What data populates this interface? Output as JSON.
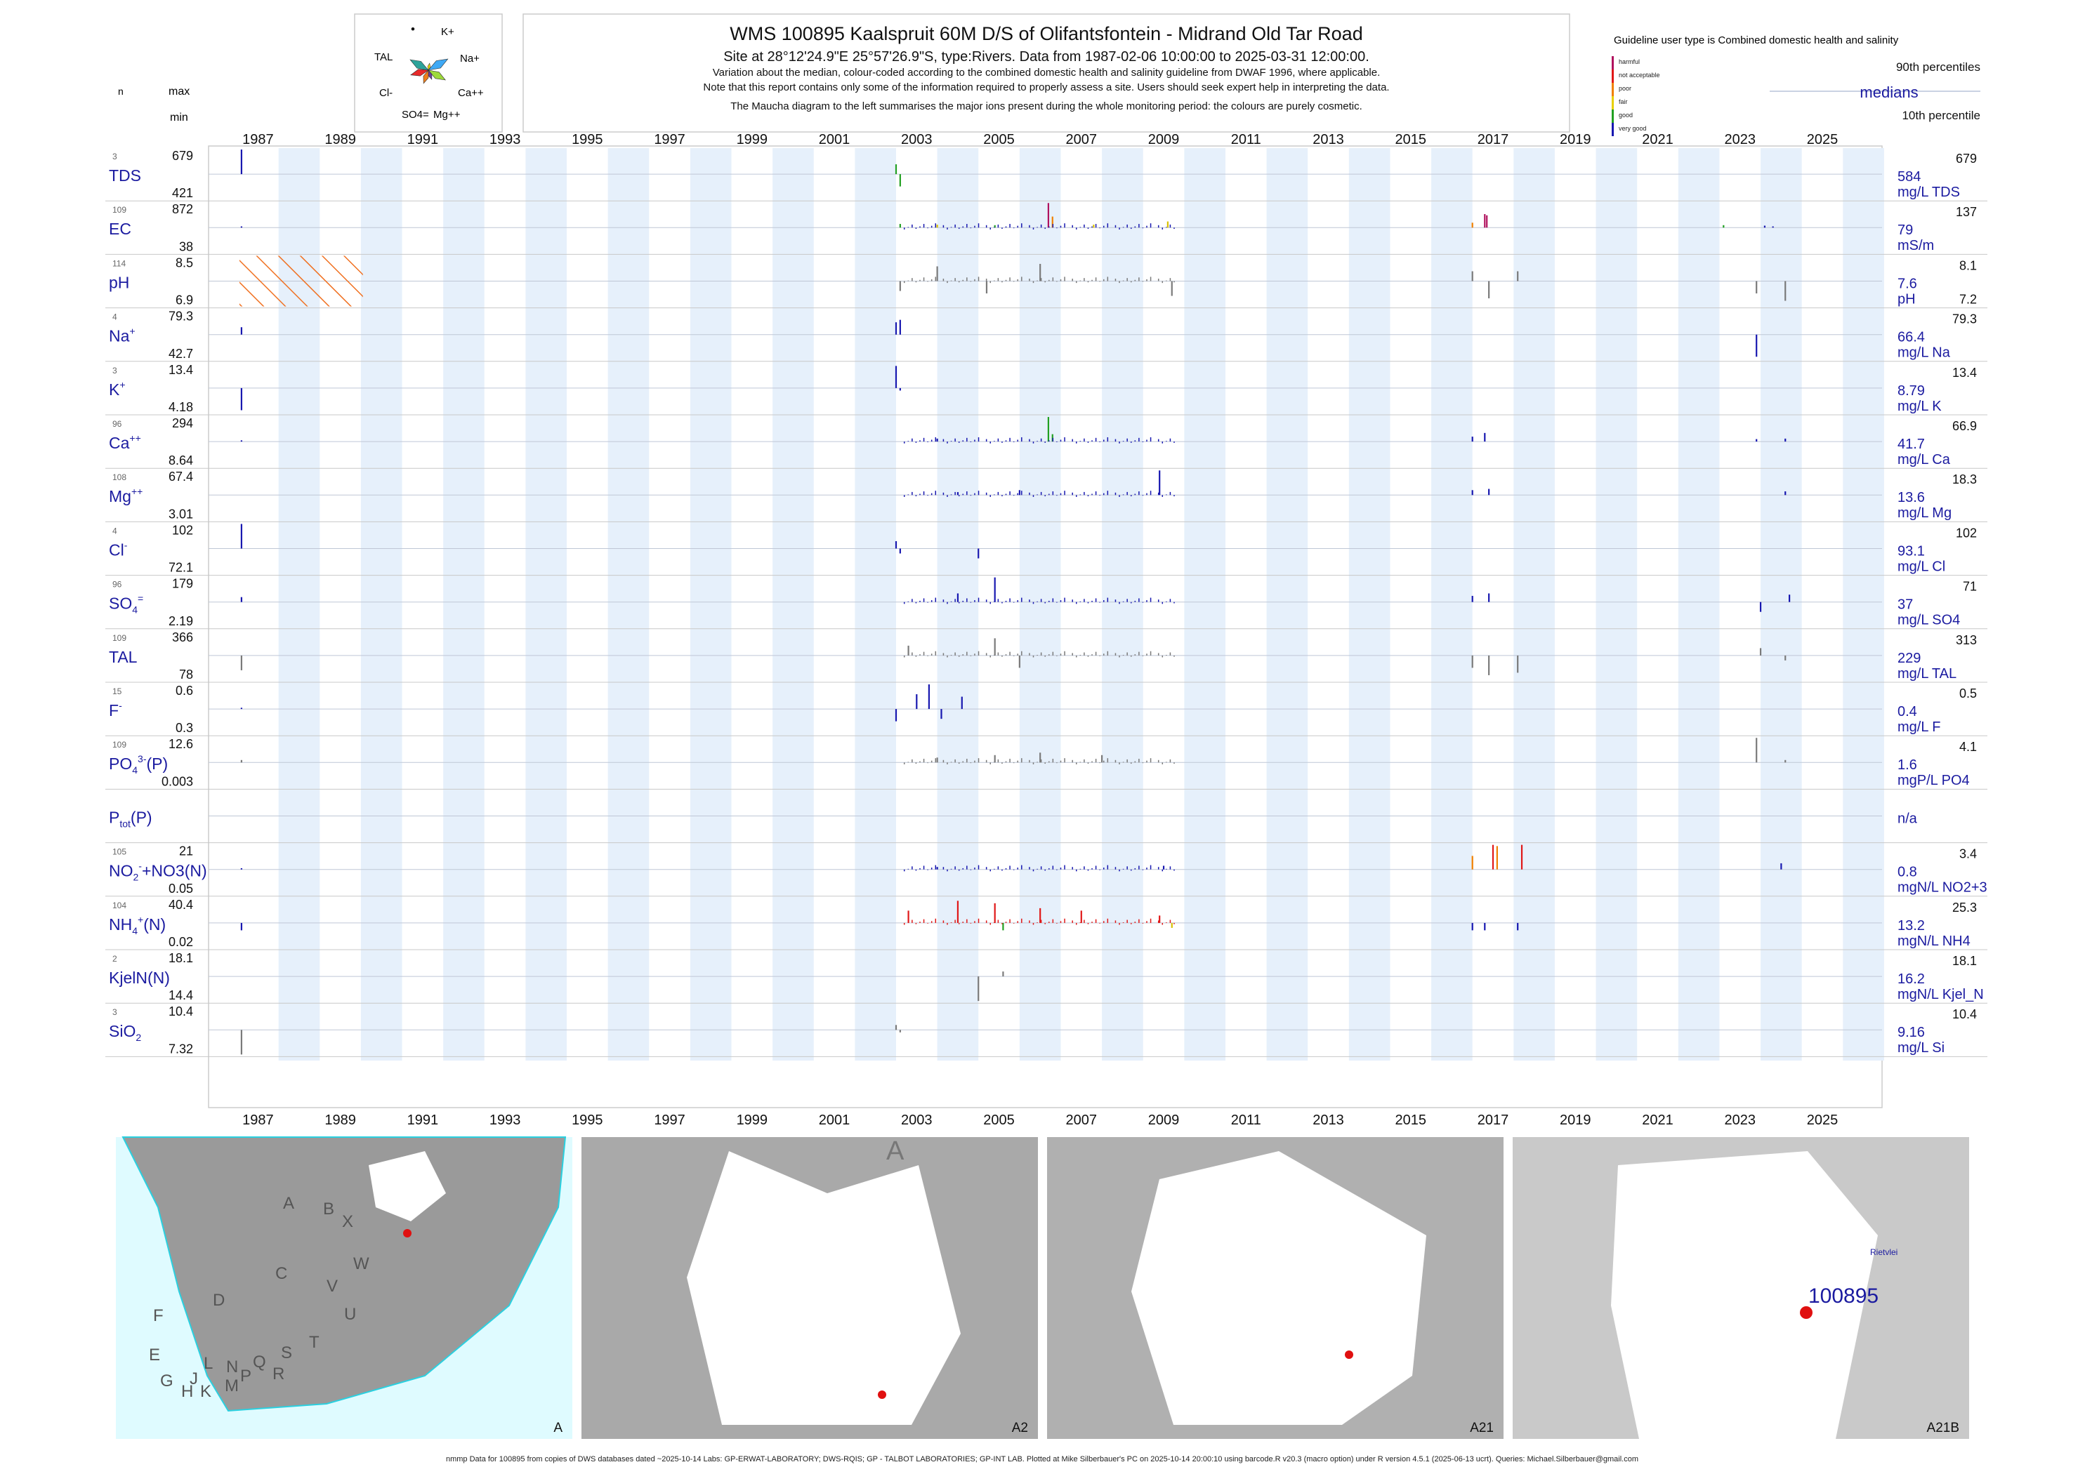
{
  "header": {
    "title": "WMS 100895  Kaalspruit 60M D/S of Olifantsfontein - Midrand Old Tar Road",
    "subtitle": "Site at 28°12'24.9\"E 25°57'26.9\"S, type:Rivers.  Data from 1987-02-06 10:00:00 to 2025-03-31 12:00:00.",
    "note1": "Variation about the median,  colour-coded according to the combined domestic health and salinity guideline from DWAF 1996, where applicable.",
    "note2": "Note that this report contains only some of the information required to properly assess a site. Users should seek expert help in interpreting the data.",
    "note3": "The Maucha diagram to the left summarises the major ions present during the whole monitoring period: the colours are purely cosmetic."
  },
  "maucha": {
    "labels": [
      "K+",
      "Na+",
      "Ca++",
      "Mg++",
      "SO4=",
      "Cl-",
      "TAL"
    ],
    "colors": [
      "#f2e400",
      "#3fa9f5",
      "#9dd93a",
      "#6b3fa0",
      "#f07f1a",
      "#e82a2a",
      "#2da39a"
    ]
  },
  "left_col_headers": {
    "n": "n",
    "max": "max",
    "min": "min"
  },
  "legend": {
    "guideline_text": "Guideline user type is Combined domestic health and salinity",
    "classes": [
      {
        "label": "harmful",
        "color": "#b0125e"
      },
      {
        "label": "not acceptable",
        "color": "#e01818"
      },
      {
        "label": "poor",
        "color": "#f08000"
      },
      {
        "label": "fair",
        "color": "#e8d000"
      },
      {
        "label": "good",
        "color": "#22a022"
      },
      {
        "label": "very good",
        "color": "#1818b0"
      }
    ],
    "p90": "90th percentiles",
    "medians": "medians",
    "p10": "10th percentile"
  },
  "years": [
    "1987",
    "1989",
    "1991",
    "1993",
    "1995",
    "1997",
    "1999",
    "2001",
    "2003",
    "2005",
    "2007",
    "2009",
    "2011",
    "2013",
    "2015",
    "2017",
    "2019",
    "2021",
    "2023",
    "2025"
  ],
  "params": [
    {
      "label": "TDS",
      "sup": "",
      "sub": "",
      "n": "3",
      "max": "679",
      "min": "421",
      "median": "584",
      "unit": "mg/L TDS",
      "p90": "679",
      "p10": ""
    },
    {
      "label": "EC",
      "sup": "",
      "sub": "",
      "n": "109",
      "max": "872",
      "min": "38",
      "median": "79",
      "unit": "mS/m",
      "p90": "137",
      "p10": ""
    },
    {
      "label": "pH",
      "sup": "",
      "sub": "",
      "n": "114",
      "max": "8.5",
      "min": "6.9",
      "median": "7.6",
      "unit": "pH",
      "p90": "8.1",
      "p10": "7.2"
    },
    {
      "label": "Na",
      "sup": "+",
      "sub": "",
      "n": "4",
      "max": "79.3",
      "min": "42.7",
      "median": "66.4",
      "unit": "mg/L Na",
      "p90": "79.3",
      "p10": ""
    },
    {
      "label": "K",
      "sup": "+",
      "sub": "",
      "n": "3",
      "max": "13.4",
      "min": "4.18",
      "median": "8.79",
      "unit": "mg/L K",
      "p90": "13.4",
      "p10": ""
    },
    {
      "label": "Ca",
      "sup": "++",
      "sub": "",
      "n": "96",
      "max": "294",
      "min": "8.64",
      "median": "41.7",
      "unit": "mg/L Ca",
      "p90": "66.9",
      "p10": ""
    },
    {
      "label": "Mg",
      "sup": "++",
      "sub": "",
      "n": "108",
      "max": "67.4",
      "min": "3.01",
      "median": "13.6",
      "unit": "mg/L Mg",
      "p90": "18.3",
      "p10": ""
    },
    {
      "label": "Cl",
      "sup": "-",
      "sub": "",
      "n": "4",
      "max": "102",
      "min": "72.1",
      "median": "93.1",
      "unit": "mg/L Cl",
      "p90": "102",
      "p10": ""
    },
    {
      "label": "SO",
      "sup": "=",
      "sub": "4",
      "n": "96",
      "max": "179",
      "min": "2.19",
      "median": "37",
      "unit": "mg/L SO4",
      "p90": "71",
      "p10": ""
    },
    {
      "label": "TAL",
      "sup": "",
      "sub": "",
      "n": "109",
      "max": "366",
      "min": "78",
      "median": "229",
      "unit": "mg/L TAL",
      "p90": "313",
      "p10": ""
    },
    {
      "label": "F",
      "sup": "-",
      "sub": "",
      "n": "15",
      "max": "0.6",
      "min": "0.3",
      "median": "0.4",
      "unit": "mg/L F",
      "p90": "0.5",
      "p10": ""
    },
    {
      "label": "PO",
      "sup": "3-",
      "sub": "4",
      "tail": "(P)",
      "n": "109",
      "max": "12.6",
      "min": "0.003",
      "median": "1.6",
      "unit": "mgP/L PO4",
      "p90": "4.1",
      "p10": ""
    },
    {
      "label": "P",
      "sup": "",
      "sub": "tot",
      "tail": "(P)",
      "n": "",
      "max": "",
      "min": "",
      "median": "n/a",
      "unit": "",
      "p90": "",
      "p10": ""
    },
    {
      "label": "NO",
      "sup": "-",
      "sub": "2",
      "tail": "+NO3(N)",
      "n": "105",
      "max": "21",
      "min": "0.05",
      "median": "0.8",
      "unit": "mgN/L NO2+3",
      "p90": "3.4",
      "p10": ""
    },
    {
      "label": "NH",
      "sup": "+",
      "sub": "4",
      "tail": "(N)",
      "n": "104",
      "max": "40.4",
      "min": "0.02",
      "median": "13.2",
      "unit": "mgN/L NH4",
      "p90": "25.3",
      "p10": ""
    },
    {
      "label": "KjelN(N)",
      "sup": "",
      "sub": "",
      "n": "2",
      "max": "18.1",
      "min": "14.4",
      "median": "16.2",
      "unit": "mgN/L Kjel_N",
      "p90": "18.1",
      "p10": ""
    },
    {
      "label": "SiO",
      "sup": "",
      "sub": "2",
      "n": "3",
      "max": "10.4",
      "min": "7.32",
      "median": "9.16",
      "unit": "mg/L Si",
      "p90": "10.4",
      "p10": ""
    }
  ],
  "maps": [
    {
      "caption": "A",
      "letters": [
        "A",
        "B",
        "X",
        "W",
        "C",
        "V",
        "U",
        "D",
        "T",
        "S",
        "F",
        "E",
        "Q",
        "R",
        "L",
        "N",
        "J",
        "G",
        "H",
        "K",
        "M",
        "P"
      ]
    },
    {
      "caption": "A2",
      "letters": [
        "A"
      ]
    },
    {
      "caption": "A21",
      "letters": []
    },
    {
      "caption": "A21B",
      "letters": [],
      "site_label": "100895",
      "place_label": "Rietvlei"
    }
  ],
  "footer": "nmmp Data for 100895 from copies of DWS databases dated ~2025-10-14 Labs: GP-ERWAT-LABORATORY; DWS-RQIS; GP - TALBOT LABORATORIES; GP-INT LAB. Plotted at Mike Silberbauer's PC on 2025-10-14 20:00:10 using barcode.R v20.3 (macro option) under R version 4.5.1 (2025-06-13 ucrt). Queries: Michael.Silberbauer@gmail.com",
  "chart_data": {
    "type": "bar",
    "title": "WMS 100895  Kaalspruit 60M D/S of Olifantsfontein - Midrand Old Tar Road",
    "x_range": [
      "1987-02-06",
      "2025-03-31"
    ],
    "grid": true,
    "legend_placement": "top-right",
    "series": [
      {
        "name": "TDS",
        "samples": [
          {
            "x": 1987.1,
            "v": 1.0,
            "c": "b"
          },
          {
            "x": 2003.0,
            "v": 0.4,
            "c": "g"
          },
          {
            "x": 2003.1,
            "v": -0.5,
            "c": "g"
          }
        ]
      },
      {
        "name": "EC",
        "samples": [
          {
            "x": 1987.1,
            "v": 0.05,
            "c": "b"
          },
          {
            "x": 2003.1,
            "v": 0.15,
            "c": "g"
          },
          {
            "x": 2004.0,
            "v": 0.12,
            "c": "y"
          },
          {
            "x": 2005.4,
            "v": 0.1,
            "c": "g"
          },
          {
            "x": 2006.7,
            "v": 1.0,
            "c": "h"
          },
          {
            "x": 2006.8,
            "v": 0.45,
            "c": "o"
          },
          {
            "x": 2007.8,
            "v": 0.12,
            "c": "y"
          },
          {
            "x": 2009.6,
            "v": 0.25,
            "c": "y"
          },
          {
            "x": 2017.0,
            "v": 0.2,
            "c": "o"
          },
          {
            "x": 2017.3,
            "v": 0.55,
            "c": "h"
          },
          {
            "x": 2017.35,
            "v": 0.5,
            "c": "h"
          },
          {
            "x": 2023.1,
            "v": 0.1,
            "c": "g"
          },
          {
            "x": 2024.1,
            "v": 0.08,
            "c": "b"
          },
          {
            "x": 2024.3,
            "v": 0.05,
            "c": "b"
          }
        ]
      },
      {
        "name": "pH",
        "samples": [
          {
            "x": 2003.1,
            "v": -0.4,
            "c": "x"
          },
          {
            "x": 2004.0,
            "v": 0.6,
            "c": "x"
          },
          {
            "x": 2005.2,
            "v": -0.5,
            "c": "x"
          },
          {
            "x": 2006.5,
            "v": 0.7,
            "c": "x"
          },
          {
            "x": 2009.7,
            "v": -0.6,
            "c": "x"
          },
          {
            "x": 2017.0,
            "v": 0.4,
            "c": "x"
          },
          {
            "x": 2017.4,
            "v": -0.7,
            "c": "x"
          },
          {
            "x": 2018.1,
            "v": 0.4,
            "c": "x"
          },
          {
            "x": 2023.9,
            "v": -0.5,
            "c": "x"
          },
          {
            "x": 2024.6,
            "v": -0.8,
            "c": "x"
          }
        ]
      },
      {
        "name": "Na",
        "samples": [
          {
            "x": 1987.1,
            "v": 0.3,
            "c": "b"
          },
          {
            "x": 2003.0,
            "v": 0.5,
            "c": "b"
          },
          {
            "x": 2003.1,
            "v": 0.6,
            "c": "b"
          },
          {
            "x": 2023.9,
            "v": -0.9,
            "c": "b"
          }
        ]
      },
      {
        "name": "K",
        "samples": [
          {
            "x": 1987.1,
            "v": -0.9,
            "c": "b"
          },
          {
            "x": 2003.0,
            "v": 0.9,
            "c": "b"
          },
          {
            "x": 2003.1,
            "v": -0.1,
            "c": "b"
          }
        ]
      },
      {
        "name": "Ca",
        "samples": [
          {
            "x": 1987.1,
            "v": 0.05,
            "c": "b"
          },
          {
            "x": 2004.0,
            "v": 0.12,
            "c": "b"
          },
          {
            "x": 2006.7,
            "v": 1.0,
            "c": "g"
          },
          {
            "x": 2006.8,
            "v": 0.3,
            "c": "g"
          },
          {
            "x": 2017.0,
            "v": 0.2,
            "c": "b"
          },
          {
            "x": 2017.3,
            "v": 0.35,
            "c": "b"
          },
          {
            "x": 2023.9,
            "v": 0.1,
            "c": "b"
          },
          {
            "x": 2024.6,
            "v": 0.12,
            "c": "b"
          }
        ]
      },
      {
        "name": "Mg",
        "samples": [
          {
            "x": 2004.5,
            "v": 0.12,
            "c": "b"
          },
          {
            "x": 2006.0,
            "v": 0.2,
            "c": "b"
          },
          {
            "x": 2009.4,
            "v": 1.0,
            "c": "b"
          },
          {
            "x": 2017.0,
            "v": 0.2,
            "c": "b"
          },
          {
            "x": 2017.4,
            "v": 0.25,
            "c": "b"
          },
          {
            "x": 2024.6,
            "v": 0.15,
            "c": "b"
          }
        ]
      },
      {
        "name": "Cl",
        "samples": [
          {
            "x": 1987.1,
            "v": 1.0,
            "c": "b"
          },
          {
            "x": 2003.0,
            "v": 0.3,
            "c": "b"
          },
          {
            "x": 2003.1,
            "v": -0.2,
            "c": "b"
          },
          {
            "x": 2005.0,
            "v": -0.4,
            "c": "b"
          }
        ]
      },
      {
        "name": "SO4",
        "samples": [
          {
            "x": 1987.1,
            "v": 0.2,
            "c": "b"
          },
          {
            "x": 2004.5,
            "v": 0.35,
            "c": "b"
          },
          {
            "x": 2005.4,
            "v": 1.0,
            "c": "b"
          },
          {
            "x": 2017.0,
            "v": 0.25,
            "c": "b"
          },
          {
            "x": 2017.4,
            "v": 0.35,
            "c": "b"
          },
          {
            "x": 2024.0,
            "v": -0.4,
            "c": "b"
          },
          {
            "x": 2024.7,
            "v": 0.3,
            "c": "b"
          }
        ]
      },
      {
        "name": "TAL",
        "samples": [
          {
            "x": 1987.1,
            "v": -0.6,
            "c": "x"
          },
          {
            "x": 2003.3,
            "v": 0.4,
            "c": "x"
          },
          {
            "x": 2005.4,
            "v": 0.7,
            "c": "x"
          },
          {
            "x": 2006.0,
            "v": -0.5,
            "c": "x"
          },
          {
            "x": 2017.0,
            "v": -0.5,
            "c": "x"
          },
          {
            "x": 2017.4,
            "v": -0.8,
            "c": "x"
          },
          {
            "x": 2018.1,
            "v": -0.7,
            "c": "x"
          },
          {
            "x": 2024.0,
            "v": 0.3,
            "c": "x"
          },
          {
            "x": 2024.6,
            "v": -0.2,
            "c": "x"
          }
        ]
      },
      {
        "name": "F",
        "samples": [
          {
            "x": 1987.1,
            "v": 0.05,
            "c": "b"
          },
          {
            "x": 2003.0,
            "v": -0.5,
            "c": "b"
          },
          {
            "x": 2003.5,
            "v": 0.6,
            "c": "b"
          },
          {
            "x": 2003.8,
            "v": 1.0,
            "c": "b"
          },
          {
            "x": 2004.1,
            "v": -0.4,
            "c": "b"
          },
          {
            "x": 2004.6,
            "v": 0.5,
            "c": "b"
          }
        ]
      },
      {
        "name": "PO4",
        "samples": [
          {
            "x": 1987.1,
            "v": 0.1,
            "c": "x"
          },
          {
            "x": 2004.0,
            "v": 0.2,
            "c": "x"
          },
          {
            "x": 2005.4,
            "v": 0.3,
            "c": "x"
          },
          {
            "x": 2006.5,
            "v": 0.4,
            "c": "x"
          },
          {
            "x": 2008.0,
            "v": 0.3,
            "c": "x"
          },
          {
            "x": 2023.9,
            "v": 1.0,
            "c": "x"
          },
          {
            "x": 2024.6,
            "v": 0.1,
            "c": "x"
          }
        ]
      },
      {
        "name": "Ptot",
        "samples": []
      },
      {
        "name": "NO2+NO3",
        "samples": [
          {
            "x": 1987.1,
            "v": 0.05,
            "c": "b"
          },
          {
            "x": 2004.0,
            "v": 0.1,
            "c": "b"
          },
          {
            "x": 2009.5,
            "v": 0.15,
            "c": "b"
          },
          {
            "x": 2017.0,
            "v": 0.55,
            "c": "o"
          },
          {
            "x": 2017.5,
            "v": 1.0,
            "c": "n"
          },
          {
            "x": 2017.6,
            "v": 0.95,
            "c": "o"
          },
          {
            "x": 2018.2,
            "v": 1.0,
            "c": "n"
          },
          {
            "x": 2024.5,
            "v": 0.25,
            "c": "b"
          }
        ]
      },
      {
        "name": "NH4",
        "samples": [
          {
            "x": 1987.1,
            "v": -0.3,
            "c": "b"
          },
          {
            "x": 2003.3,
            "v": 0.5,
            "c": "n"
          },
          {
            "x": 2004.5,
            "v": 0.9,
            "c": "n"
          },
          {
            "x": 2005.4,
            "v": 0.8,
            "c": "n"
          },
          {
            "x": 2005.6,
            "v": -0.3,
            "c": "g"
          },
          {
            "x": 2006.5,
            "v": 0.6,
            "c": "n"
          },
          {
            "x": 2007.5,
            "v": 0.5,
            "c": "n"
          },
          {
            "x": 2009.4,
            "v": 0.3,
            "c": "n"
          },
          {
            "x": 2009.7,
            "v": -0.2,
            "c": "y"
          },
          {
            "x": 2017.0,
            "v": -0.3,
            "c": "b"
          },
          {
            "x": 2017.3,
            "v": -0.3,
            "c": "b"
          },
          {
            "x": 2018.1,
            "v": -0.3,
            "c": "b"
          }
        ]
      },
      {
        "name": "KjelN",
        "samples": [
          {
            "x": 2005.0,
            "v": -1.0,
            "c": "x"
          },
          {
            "x": 2005.6,
            "v": 0.2,
            "c": "x"
          }
        ]
      },
      {
        "name": "SiO2",
        "samples": [
          {
            "x": 1987.1,
            "v": -1.0,
            "c": "x"
          },
          {
            "x": 2003.0,
            "v": 0.2,
            "c": "x"
          },
          {
            "x": 2003.1,
            "v": -0.1,
            "c": "x"
          }
        ]
      }
    ]
  }
}
